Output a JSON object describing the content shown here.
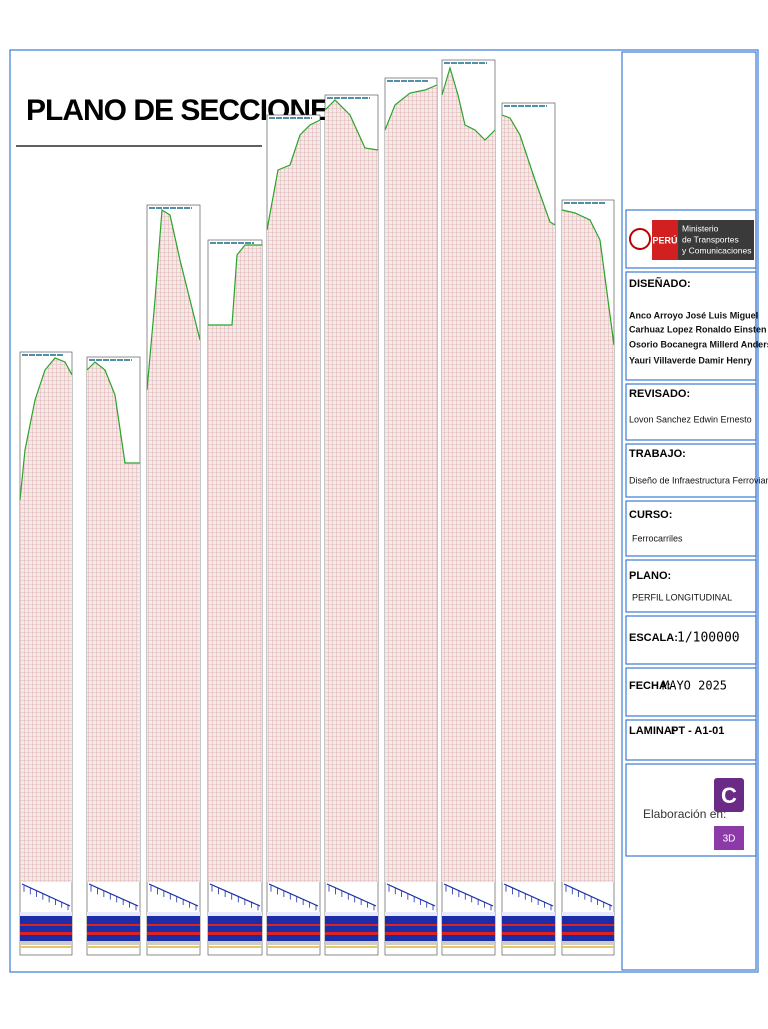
{
  "sheet": {
    "title": "PLANO DE SECCIONES"
  },
  "logo": {
    "country": "PERÚ",
    "line1": "Ministerio",
    "line2": "de Transportes",
    "line3": "y Comunicaciones"
  },
  "title_block": {
    "designed": {
      "label": "DISEÑADO:",
      "names": [
        "Anco Arroyo José Luis Miguel",
        "Carhuaz Lopez Ronaldo Einsten",
        "Osorio Bocanegra Millerd Anderson",
        "Yauri Villaverde Damir Henry"
      ]
    },
    "reviewed": {
      "label": "REVISADO:",
      "value": "Lovon Sanchez Edwin Ernesto"
    },
    "work": {
      "label": "TRABAJO:",
      "value": "Diseño de Infraestructura Ferroviaria"
    },
    "course": {
      "label": "CURSO:",
      "value": "Ferrocarriles"
    },
    "plan": {
      "label": "PLANO:",
      "value": "PERFIL LONGITUDINAL"
    },
    "scale": {
      "label": "ESCALA:",
      "value": "1/100000"
    },
    "date": {
      "label": "FECHA:",
      "value": "MAYO 2025"
    },
    "sheet_no": {
      "label": "LAMINA:",
      "value": "PT - A1-01"
    },
    "software": {
      "label": "Elaboración en:",
      "icon_letter": "C",
      "icon_sub": "3D"
    }
  }
}
